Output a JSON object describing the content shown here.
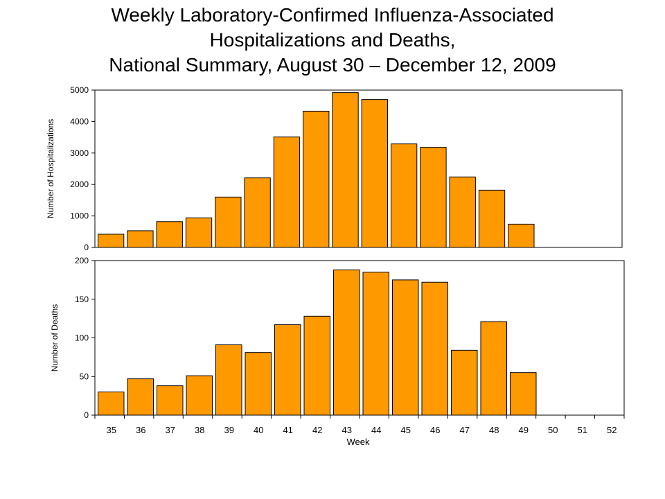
{
  "title_lines": [
    "Weekly Laboratory-Confirmed Influenza-Associated",
    "Hospitalizations and Deaths,",
    "National Summary, August 30 – December 12, 2009"
  ],
  "colors": {
    "bar": "#FF9900",
    "bar_stroke": "#000000"
  },
  "chart_data": [
    {
      "type": "bar",
      "title": "",
      "xlabel": "",
      "ylabel": "Number of Hospitalizations",
      "ylim": [
        0,
        5000
      ],
      "yticks": [
        0,
        1000,
        2000,
        3000,
        4000,
        5000
      ],
      "categories": [
        "35",
        "36",
        "37",
        "38",
        "39",
        "40",
        "41",
        "42",
        "43",
        "44",
        "45",
        "46",
        "47",
        "48",
        "49",
        "50",
        "51",
        "52"
      ],
      "values": [
        420,
        530,
        820,
        940,
        1600,
        2210,
        3510,
        4330,
        4920,
        4700,
        3290,
        3180,
        2240,
        1820,
        740,
        null,
        null,
        null
      ],
      "grid": false
    },
    {
      "type": "bar",
      "title": "",
      "xlabel": "Week",
      "ylabel": "Number of Deaths",
      "ylim": [
        0,
        200
      ],
      "yticks": [
        0,
        50,
        100,
        150,
        200
      ],
      "categories": [
        "35",
        "36",
        "37",
        "38",
        "39",
        "40",
        "41",
        "42",
        "43",
        "44",
        "45",
        "46",
        "47",
        "48",
        "49",
        "50",
        "51",
        "52"
      ],
      "values": [
        30,
        47,
        38,
        51,
        91,
        81,
        117,
        128,
        188,
        185,
        175,
        172,
        84,
        121,
        55,
        null,
        null,
        null
      ],
      "grid": false
    }
  ]
}
